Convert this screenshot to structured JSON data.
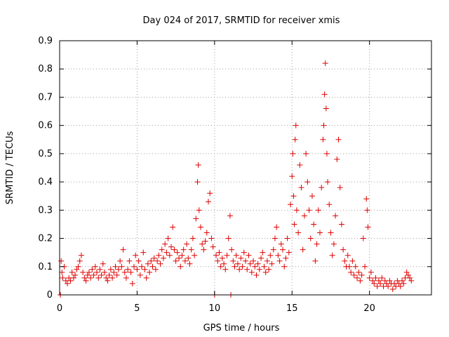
{
  "chart_data": {
    "type": "scatter",
    "title": "Day 024 of 2017, SRMTID for receiver xmis",
    "xlabel": "GPS time / hours",
    "ylabel": "SRMTID / TECUs",
    "xlim": [
      0,
      24
    ],
    "ylim": [
      0,
      0.9
    ],
    "xticks": [
      0,
      5,
      10,
      15,
      20
    ],
    "yticks": [
      0,
      0.1,
      0.2,
      0.3,
      0.4,
      0.5,
      0.6,
      0.7,
      0.8,
      0.9
    ],
    "grid": true,
    "marker": "plus",
    "series": [
      {
        "name": "SRMTID",
        "color": "#e00000",
        "points": [
          [
            0.05,
            0.0
          ],
          [
            0.1,
            0.12
          ],
          [
            0.15,
            0.08
          ],
          [
            0.2,
            0.06
          ],
          [
            0.3,
            0.1
          ],
          [
            0.4,
            0.05
          ],
          [
            0.5,
            0.04
          ],
          [
            0.6,
            0.06
          ],
          [
            0.7,
            0.05
          ],
          [
            0.8,
            0.08
          ],
          [
            0.9,
            0.06
          ],
          [
            1.0,
            0.07
          ],
          [
            1.1,
            0.09
          ],
          [
            1.2,
            0.1
          ],
          [
            1.3,
            0.12
          ],
          [
            1.4,
            0.14
          ],
          [
            1.5,
            0.08
          ],
          [
            1.6,
            0.06
          ],
          [
            1.7,
            0.05
          ],
          [
            1.8,
            0.07
          ],
          [
            1.9,
            0.08
          ],
          [
            2.0,
            0.06
          ],
          [
            2.1,
            0.09
          ],
          [
            2.2,
            0.07
          ],
          [
            2.3,
            0.1
          ],
          [
            2.4,
            0.08
          ],
          [
            2.5,
            0.06
          ],
          [
            2.6,
            0.09
          ],
          [
            2.7,
            0.07
          ],
          [
            2.8,
            0.11
          ],
          [
            2.9,
            0.08
          ],
          [
            3.0,
            0.06
          ],
          [
            3.1,
            0.05
          ],
          [
            3.2,
            0.07
          ],
          [
            3.3,
            0.09
          ],
          [
            3.4,
            0.06
          ],
          [
            3.5,
            0.08
          ],
          [
            3.6,
            0.1
          ],
          [
            3.7,
            0.07
          ],
          [
            3.8,
            0.09
          ],
          [
            3.9,
            0.12
          ],
          [
            4.0,
            0.1
          ],
          [
            4.1,
            0.16
          ],
          [
            4.2,
            0.08
          ],
          [
            4.3,
            0.06
          ],
          [
            4.4,
            0.09
          ],
          [
            4.5,
            0.12
          ],
          [
            4.6,
            0.08
          ],
          [
            4.7,
            0.04
          ],
          [
            4.8,
            0.1
          ],
          [
            4.9,
            0.14
          ],
          [
            5.0,
            0.09
          ],
          [
            5.1,
            0.12
          ],
          [
            5.2,
            0.07
          ],
          [
            5.3,
            0.1
          ],
          [
            5.4,
            0.15
          ],
          [
            5.5,
            0.09
          ],
          [
            5.6,
            0.06
          ],
          [
            5.7,
            0.11
          ],
          [
            5.8,
            0.08
          ],
          [
            5.9,
            0.12
          ],
          [
            6.0,
            0.1
          ],
          [
            6.1,
            0.13
          ],
          [
            6.2,
            0.09
          ],
          [
            6.3,
            0.12
          ],
          [
            6.4,
            0.14
          ],
          [
            6.5,
            0.11
          ],
          [
            6.6,
            0.16
          ],
          [
            6.7,
            0.13
          ],
          [
            6.8,
            0.18
          ],
          [
            6.9,
            0.15
          ],
          [
            7.0,
            0.2
          ],
          [
            7.1,
            0.14
          ],
          [
            7.2,
            0.17
          ],
          [
            7.3,
            0.24
          ],
          [
            7.4,
            0.16
          ],
          [
            7.5,
            0.12
          ],
          [
            7.6,
            0.15
          ],
          [
            7.7,
            0.13
          ],
          [
            7.8,
            0.1
          ],
          [
            7.9,
            0.14
          ],
          [
            8.0,
            0.16
          ],
          [
            8.1,
            0.12
          ],
          [
            8.2,
            0.18
          ],
          [
            8.3,
            0.13
          ],
          [
            8.4,
            0.11
          ],
          [
            8.5,
            0.16
          ],
          [
            8.6,
            0.2
          ],
          [
            8.7,
            0.14
          ],
          [
            8.8,
            0.27
          ],
          [
            8.9,
            0.4
          ],
          [
            8.95,
            0.46
          ],
          [
            9.0,
            0.3
          ],
          [
            9.1,
            0.24
          ],
          [
            9.2,
            0.18
          ],
          [
            9.3,
            0.16
          ],
          [
            9.4,
            0.19
          ],
          [
            9.5,
            0.22
          ],
          [
            9.6,
            0.33
          ],
          [
            9.7,
            0.36
          ],
          [
            9.8,
            0.2
          ],
          [
            9.9,
            0.17
          ],
          [
            10.0,
            0.0
          ],
          [
            10.1,
            0.14
          ],
          [
            10.2,
            0.12
          ],
          [
            10.3,
            0.15
          ],
          [
            10.4,
            0.1
          ],
          [
            10.5,
            0.13
          ],
          [
            10.6,
            0.11
          ],
          [
            10.7,
            0.09
          ],
          [
            10.8,
            0.14
          ],
          [
            10.9,
            0.2
          ],
          [
            11.0,
            0.28
          ],
          [
            11.05,
            0.0
          ],
          [
            11.1,
            0.16
          ],
          [
            11.2,
            0.12
          ],
          [
            11.3,
            0.1
          ],
          [
            11.4,
            0.14
          ],
          [
            11.5,
            0.11
          ],
          [
            11.6,
            0.09
          ],
          [
            11.7,
            0.13
          ],
          [
            11.8,
            0.1
          ],
          [
            11.9,
            0.15
          ],
          [
            12.0,
            0.12
          ],
          [
            12.1,
            0.09
          ],
          [
            12.2,
            0.14
          ],
          [
            12.3,
            0.11
          ],
          [
            12.4,
            0.08
          ],
          [
            12.5,
            0.12
          ],
          [
            12.6,
            0.1
          ],
          [
            12.7,
            0.07
          ],
          [
            12.8,
            0.11
          ],
          [
            12.9,
            0.09
          ],
          [
            13.0,
            0.13
          ],
          [
            13.1,
            0.15
          ],
          [
            13.2,
            0.1
          ],
          [
            13.3,
            0.08
          ],
          [
            13.4,
            0.12
          ],
          [
            13.5,
            0.09
          ],
          [
            13.6,
            0.14
          ],
          [
            13.7,
            0.11
          ],
          [
            13.8,
            0.16
          ],
          [
            13.9,
            0.2
          ],
          [
            14.0,
            0.24
          ],
          [
            14.1,
            0.14
          ],
          [
            14.2,
            0.12
          ],
          [
            14.3,
            0.18
          ],
          [
            14.4,
            0.16
          ],
          [
            14.5,
            0.1
          ],
          [
            14.6,
            0.13
          ],
          [
            14.7,
            0.2
          ],
          [
            14.8,
            0.15
          ],
          [
            14.9,
            0.32
          ],
          [
            15.0,
            0.42
          ],
          [
            15.05,
            0.5
          ],
          [
            15.1,
            0.35
          ],
          [
            15.15,
            0.25
          ],
          [
            15.2,
            0.55
          ],
          [
            15.25,
            0.6
          ],
          [
            15.3,
            0.3
          ],
          [
            15.4,
            0.22
          ],
          [
            15.5,
            0.46
          ],
          [
            15.6,
            0.38
          ],
          [
            15.7,
            0.16
          ],
          [
            15.8,
            0.28
          ],
          [
            15.9,
            0.5
          ],
          [
            16.0,
            0.4
          ],
          [
            16.1,
            0.3
          ],
          [
            16.2,
            0.2
          ],
          [
            16.3,
            0.35
          ],
          [
            16.4,
            0.25
          ],
          [
            16.5,
            0.12
          ],
          [
            16.6,
            0.18
          ],
          [
            16.7,
            0.3
          ],
          [
            16.8,
            0.22
          ],
          [
            16.9,
            0.38
          ],
          [
            17.0,
            0.55
          ],
          [
            17.05,
            0.6
          ],
          [
            17.1,
            0.71
          ],
          [
            17.15,
            0.82
          ],
          [
            17.2,
            0.66
          ],
          [
            17.25,
            0.5
          ],
          [
            17.3,
            0.4
          ],
          [
            17.4,
            0.32
          ],
          [
            17.5,
            0.22
          ],
          [
            17.6,
            0.14
          ],
          [
            17.7,
            0.18
          ],
          [
            17.8,
            0.28
          ],
          [
            17.9,
            0.48
          ],
          [
            18.0,
            0.55
          ],
          [
            18.1,
            0.38
          ],
          [
            18.2,
            0.25
          ],
          [
            18.3,
            0.16
          ],
          [
            18.4,
            0.12
          ],
          [
            18.5,
            0.1
          ],
          [
            18.6,
            0.14
          ],
          [
            18.7,
            0.1
          ],
          [
            18.8,
            0.08
          ],
          [
            18.9,
            0.12
          ],
          [
            19.0,
            0.07
          ],
          [
            19.1,
            0.1
          ],
          [
            19.2,
            0.06
          ],
          [
            19.3,
            0.08
          ],
          [
            19.4,
            0.05
          ],
          [
            19.5,
            0.07
          ],
          [
            19.6,
            0.2
          ],
          [
            19.7,
            0.1
          ],
          [
            19.8,
            0.34
          ],
          [
            19.85,
            0.3
          ],
          [
            19.9,
            0.24
          ],
          [
            20.0,
            0.06
          ],
          [
            20.1,
            0.08
          ],
          [
            20.2,
            0.05
          ],
          [
            20.3,
            0.04
          ],
          [
            20.4,
            0.06
          ],
          [
            20.5,
            0.03
          ],
          [
            20.6,
            0.05
          ],
          [
            20.7,
            0.04
          ],
          [
            20.8,
            0.06
          ],
          [
            20.9,
            0.03
          ],
          [
            21.0,
            0.05
          ],
          [
            21.1,
            0.04
          ],
          [
            21.2,
            0.03
          ],
          [
            21.3,
            0.05
          ],
          [
            21.4,
            0.04
          ],
          [
            21.5,
            0.02
          ],
          [
            21.6,
            0.04
          ],
          [
            21.7,
            0.03
          ],
          [
            21.8,
            0.05
          ],
          [
            21.9,
            0.04
          ],
          [
            22.0,
            0.03
          ],
          [
            22.1,
            0.05
          ],
          [
            22.2,
            0.04
          ],
          [
            22.3,
            0.06
          ],
          [
            22.4,
            0.08
          ],
          [
            22.5,
            0.07
          ],
          [
            22.6,
            0.06
          ],
          [
            22.7,
            0.05
          ]
        ]
      }
    ]
  }
}
